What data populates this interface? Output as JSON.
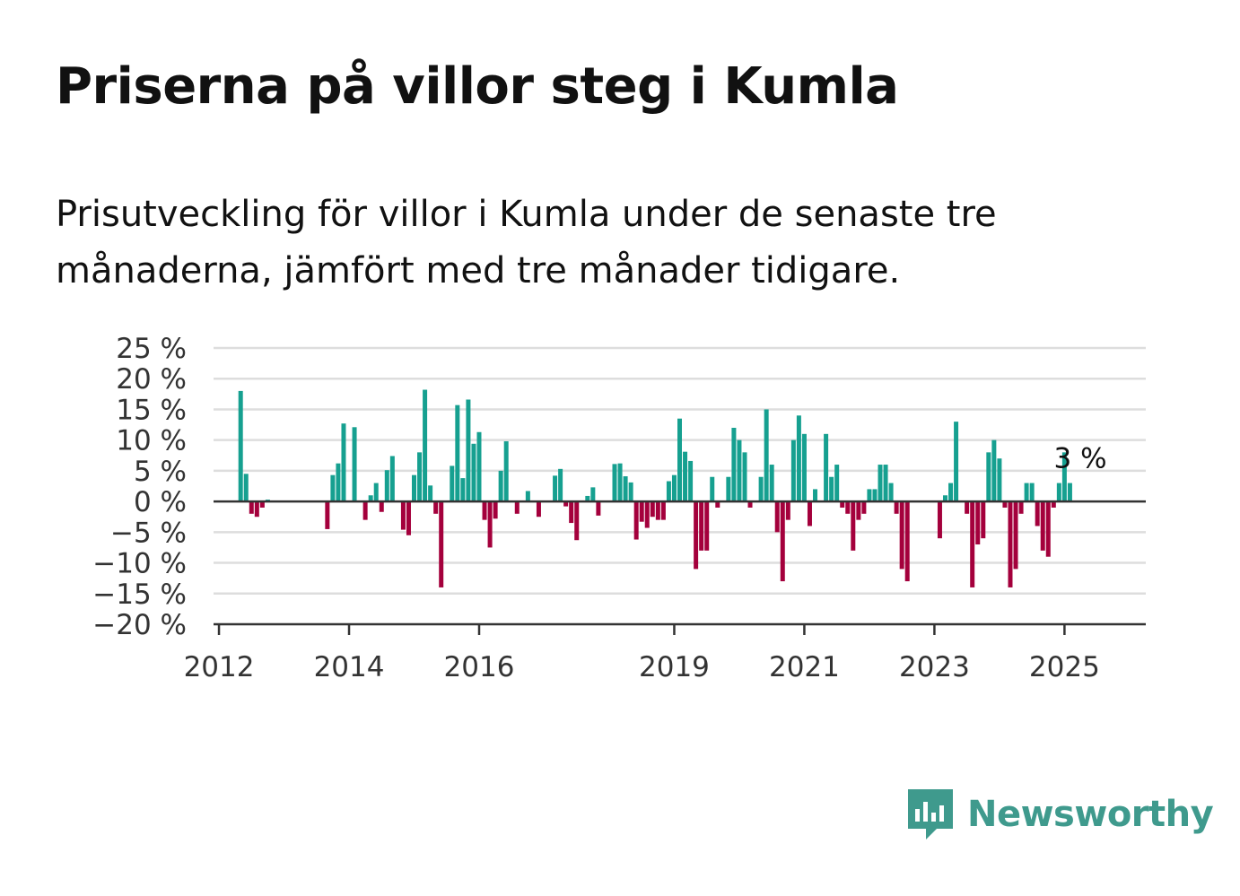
{
  "title": "Priserna på villor steg i Kumla",
  "subtitle": "Prisutveckling för villor i Kumla under de senaste tre månaderna, jämfört med tre månader tidigare.",
  "brand": {
    "name": "Newsworthy",
    "icon": "newsworthy-logo-icon",
    "color": "#3f9a8d"
  },
  "colors": {
    "positive": "#16a090",
    "negative": "#a4003c",
    "grid": "#dddddd",
    "axis": "#333333"
  },
  "chart_data": {
    "type": "bar",
    "title": "",
    "xlabel": "",
    "ylabel": "",
    "ylim": [
      -20,
      25
    ],
    "y_ticks": [
      25,
      20,
      15,
      10,
      5,
      0,
      -5,
      -10,
      -15,
      -20
    ],
    "y_tick_labels": [
      "25 %",
      "20 %",
      "15 %",
      "10 %",
      "5 %",
      "0 %",
      "−5 %",
      "−10 %",
      "−15 %",
      "−20 %"
    ],
    "x_ticks": [
      "2012",
      "2014",
      "2016",
      "2019",
      "2021",
      "2023",
      "2025"
    ],
    "grid": true,
    "annotation": {
      "text": "3 %",
      "date": "2025-04",
      "value": 3
    },
    "series": [
      {
        "values": [
          [
            "2012-05",
            18
          ],
          [
            "2012-06",
            4.5
          ],
          [
            "2012-07",
            -2
          ],
          [
            "2012-08",
            -2.5
          ],
          [
            "2012-09",
            -1
          ],
          [
            "2012-10",
            0.3
          ],
          [
            "2013-09",
            -4.5
          ],
          [
            "2013-10",
            4.3
          ],
          [
            "2013-11",
            6.2
          ],
          [
            "2013-12",
            12.7
          ],
          [
            "2014-02",
            12.1
          ],
          [
            "2014-04",
            -3
          ],
          [
            "2014-05",
            1
          ],
          [
            "2014-06",
            3
          ],
          [
            "2014-07",
            -1.7
          ],
          [
            "2014-08",
            5.1
          ],
          [
            "2014-09",
            7.4
          ],
          [
            "2014-11",
            -4.6
          ],
          [
            "2014-12",
            -5.5
          ],
          [
            "2015-01",
            4.3
          ],
          [
            "2015-02",
            8
          ],
          [
            "2015-03",
            18.2
          ],
          [
            "2015-04",
            2.6
          ],
          [
            "2015-05",
            -2
          ],
          [
            "2015-06",
            -14
          ],
          [
            "2015-08",
            5.8
          ],
          [
            "2015-09",
            15.7
          ],
          [
            "2015-10",
            3.8
          ],
          [
            "2015-11",
            16.6
          ],
          [
            "2015-12",
            9.4
          ],
          [
            "2016-01",
            11.3
          ],
          [
            "2016-02",
            -3
          ],
          [
            "2016-03",
            -7.5
          ],
          [
            "2016-04",
            -2.8
          ],
          [
            "2016-05",
            5
          ],
          [
            "2016-06",
            9.8
          ],
          [
            "2016-08",
            -2
          ],
          [
            "2016-10",
            1.7
          ],
          [
            "2016-12",
            -2.5
          ],
          [
            "2017-03",
            4.2
          ],
          [
            "2017-04",
            5.3
          ],
          [
            "2017-05",
            -0.8
          ],
          [
            "2017-06",
            -3.5
          ],
          [
            "2017-07",
            -6.3
          ],
          [
            "2017-09",
            0.9
          ],
          [
            "2017-10",
            2.3
          ],
          [
            "2017-11",
            -2.3
          ],
          [
            "2018-02",
            6.1
          ],
          [
            "2018-03",
            6.2
          ],
          [
            "2018-04",
            4.1
          ],
          [
            "2018-05",
            3.1
          ],
          [
            "2018-06",
            -6.2
          ],
          [
            "2018-07",
            -3.3
          ],
          [
            "2018-08",
            -4.3
          ],
          [
            "2018-09",
            -2.5
          ],
          [
            "2018-10",
            -3
          ],
          [
            "2018-11",
            -3
          ],
          [
            "2018-12",
            3.3
          ],
          [
            "2019-01",
            4.3
          ],
          [
            "2019-02",
            13.5
          ],
          [
            "2019-03",
            8.1
          ],
          [
            "2019-04",
            6.6
          ],
          [
            "2019-05",
            -11
          ],
          [
            "2019-06",
            -8
          ],
          [
            "2019-07",
            -8
          ],
          [
            "2019-08",
            4
          ],
          [
            "2019-09",
            -1
          ],
          [
            "2019-11",
            4
          ],
          [
            "2019-12",
            12
          ],
          [
            "2020-01",
            10
          ],
          [
            "2020-02",
            8
          ],
          [
            "2020-03",
            -1
          ],
          [
            "2020-05",
            4
          ],
          [
            "2020-06",
            15
          ],
          [
            "2020-07",
            6
          ],
          [
            "2020-08",
            -5
          ],
          [
            "2020-09",
            -13
          ],
          [
            "2020-10",
            -3
          ],
          [
            "2020-11",
            10
          ],
          [
            "2020-12",
            14
          ],
          [
            "2021-01",
            11
          ],
          [
            "2021-02",
            -4
          ],
          [
            "2021-03",
            2
          ],
          [
            "2021-05",
            11
          ],
          [
            "2021-06",
            4
          ],
          [
            "2021-07",
            6
          ],
          [
            "2021-08",
            -1
          ],
          [
            "2021-09",
            -2
          ],
          [
            "2021-10",
            -8
          ],
          [
            "2021-11",
            -3
          ],
          [
            "2021-12",
            -2
          ],
          [
            "2022-01",
            2
          ],
          [
            "2022-02",
            2
          ],
          [
            "2022-03",
            6
          ],
          [
            "2022-04",
            6
          ],
          [
            "2022-05",
            3
          ],
          [
            "2022-06",
            -2
          ],
          [
            "2022-07",
            -11
          ],
          [
            "2022-08",
            -13
          ],
          [
            "2023-02",
            -6
          ],
          [
            "2023-03",
            1
          ],
          [
            "2023-04",
            3
          ],
          [
            "2023-05",
            13
          ],
          [
            "2023-07",
            -2
          ],
          [
            "2023-08",
            -14
          ],
          [
            "2023-09",
            -7
          ],
          [
            "2023-10",
            -6
          ],
          [
            "2023-11",
            8
          ],
          [
            "2023-12",
            10
          ],
          [
            "2024-01",
            7
          ],
          [
            "2024-02",
            -1
          ],
          [
            "2024-03",
            -14
          ],
          [
            "2024-04",
            -11
          ],
          [
            "2024-05",
            -2
          ],
          [
            "2024-06",
            3
          ],
          [
            "2024-07",
            3
          ],
          [
            "2024-08",
            -4
          ],
          [
            "2024-09",
            -8
          ],
          [
            "2024-10",
            -9
          ],
          [
            "2024-11",
            -1
          ],
          [
            "2024-12",
            3
          ],
          [
            "2025-01",
            8
          ],
          [
            "2025-02",
            3
          ]
        ]
      }
    ]
  }
}
